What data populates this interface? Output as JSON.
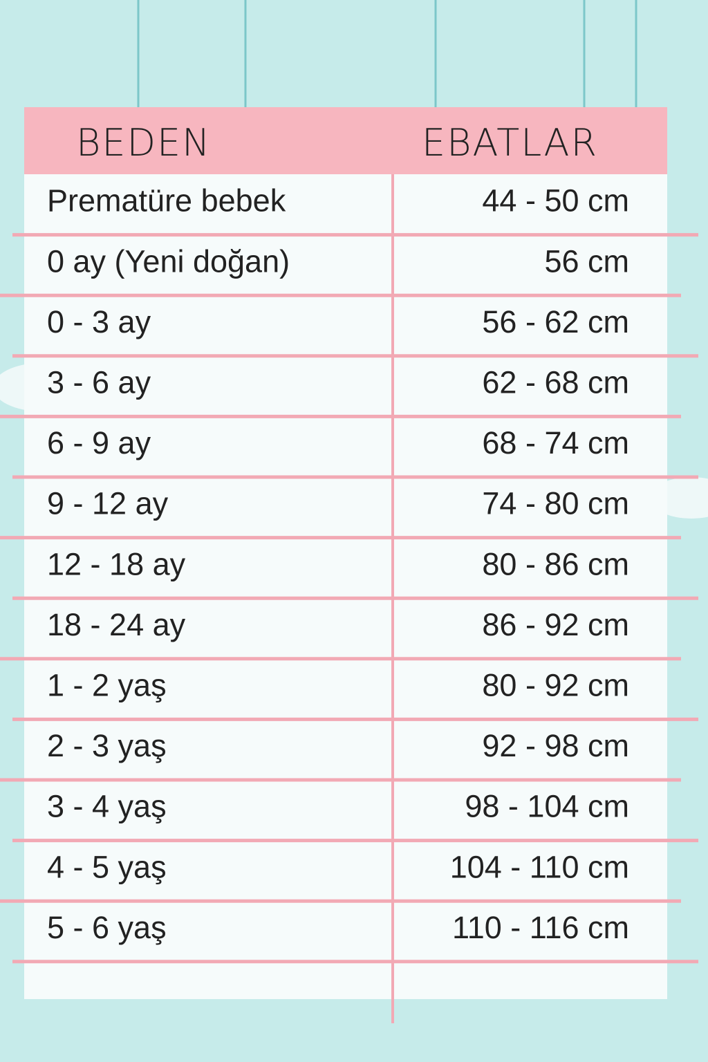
{
  "header": {
    "size": "BEDEN",
    "measure": "EBATLAR"
  },
  "table": {
    "rows": [
      [
        "Prematüre bebek",
        "44 - 50 cm"
      ],
      [
        "0 ay (Yeni doğan)",
        "56 cm"
      ],
      [
        "0 - 3 ay",
        "56 - 62 cm"
      ],
      [
        "3 - 6 ay",
        "62 - 68 cm"
      ],
      [
        "6 - 9 ay",
        "68 - 74 cm"
      ],
      [
        "9 - 12 ay",
        "74 - 80 cm"
      ],
      [
        "12 - 18 ay",
        "80 - 86 cm"
      ],
      [
        "18 - 24 ay",
        "86 - 92 cm"
      ],
      [
        "1 - 2 yaş",
        "80 - 92 cm"
      ],
      [
        "2 - 3 yaş",
        "92 - 98 cm"
      ],
      [
        "3 - 4 yaş",
        "98 - 104 cm"
      ],
      [
        "4 - 5 yaş",
        "104 - 110 cm"
      ],
      [
        "5 - 6 yaş",
        "110 - 116 cm"
      ]
    ]
  }
}
